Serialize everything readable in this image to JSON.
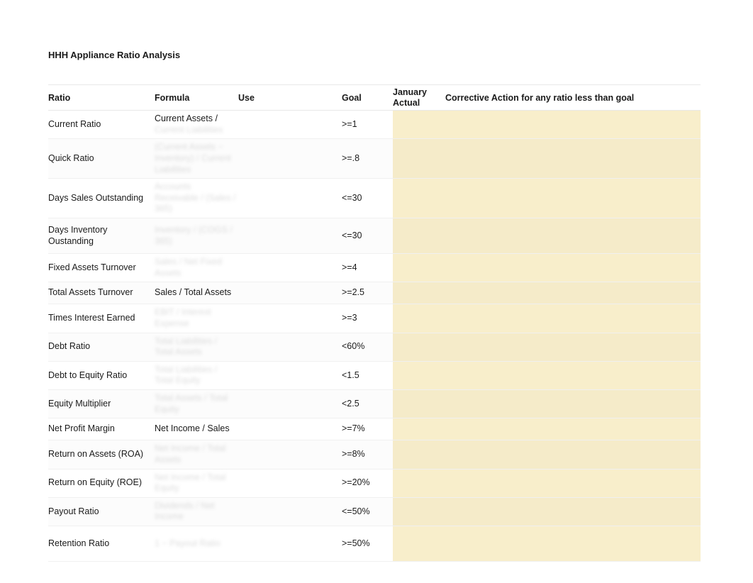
{
  "title": "HHH Appliance Ratio Analysis",
  "columns": {
    "ratio": "Ratio",
    "formula": "Formula",
    "use": "Use",
    "goal": "Goal",
    "january_actual_line1": "January",
    "january_actual_line2": "Actual",
    "corrective": "Corrective Action for any ratio less than goal"
  },
  "colors": {
    "highlight": "#f8eecb",
    "text": "#1a1a1a",
    "stripe": "rgba(0,0,0,0.012)",
    "border": "#f0f0f0"
  },
  "rows": [
    {
      "ratio": "Current Ratio",
      "formula_visible": "Current Assets /",
      "formula_blur": "Current Liabilities",
      "goal": ">=1",
      "h": "row-h2"
    },
    {
      "ratio": "Quick Ratio",
      "formula_visible": "",
      "formula_blur": "(Current Assets − Inventory) / Current Liabilities",
      "goal": ">=.8",
      "h": "row-h3"
    },
    {
      "ratio": "Days Sales Outstanding",
      "formula_visible": "",
      "formula_blur": "Accounts Receivable / (Sales / 365)",
      "goal": "<=30",
      "h": "row-h2"
    },
    {
      "ratio": "Days Inventory Oustanding",
      "formula_visible": "",
      "formula_blur": "Inventory / (COGS / 365)",
      "goal": "<=30",
      "h": "row-h3"
    },
    {
      "ratio": "Fixed Assets Turnover",
      "formula_visible": "",
      "formula_blur": "Sales / Net Fixed Assets",
      "goal": ">=4",
      "h": "row-h2"
    },
    {
      "ratio": "Total Assets Turnover",
      "formula_visible": "Sales / Total Assets",
      "formula_blur": "",
      "goal": ">=2.5",
      "h": "row-h1"
    },
    {
      "ratio": "Times Interest Earned",
      "formula_visible": "",
      "formula_blur": "EBIT / Interest Expense",
      "goal": ">=3",
      "h": "row-h2"
    },
    {
      "ratio": "Debt Ratio",
      "formula_visible": "",
      "formula_blur": "Total Liabilities / Total Assets",
      "goal": "<60%",
      "h": "row-h2"
    },
    {
      "ratio": "Debt to Equity Ratio",
      "formula_visible": "",
      "formula_blur": "Total Liabilities / Total Equity",
      "goal": "<1.5",
      "h": "row-h2"
    },
    {
      "ratio": "Equity Multiplier",
      "formula_visible": "",
      "formula_blur": "Total Assets / Total Equity",
      "goal": "<2.5",
      "h": "row-h2"
    },
    {
      "ratio": "Net Profit Margin",
      "formula_visible": "Net Income / Sales",
      "formula_blur": "",
      "goal": ">=7%",
      "h": "row-h1"
    },
    {
      "ratio": "Return on Assets (ROA)",
      "formula_visible": "",
      "formula_blur": "Net Income / Total Assets",
      "goal": ">=8%",
      "h": "row-h2"
    },
    {
      "ratio": "Return on Equity (ROE)",
      "formula_visible": "",
      "formula_blur": "Net Income / Total Equity",
      "goal": ">=20%",
      "h": "row-h2"
    },
    {
      "ratio": "Payout Ratio",
      "formula_visible": "",
      "formula_blur": "Dividends / Net Income",
      "goal": "<=50%",
      "h": "row-h2"
    },
    {
      "ratio": "Retention Ratio",
      "formula_visible": "",
      "formula_blur": "1 − Payout Ratio",
      "goal": ">=50%",
      "h": "row-h3"
    }
  ]
}
